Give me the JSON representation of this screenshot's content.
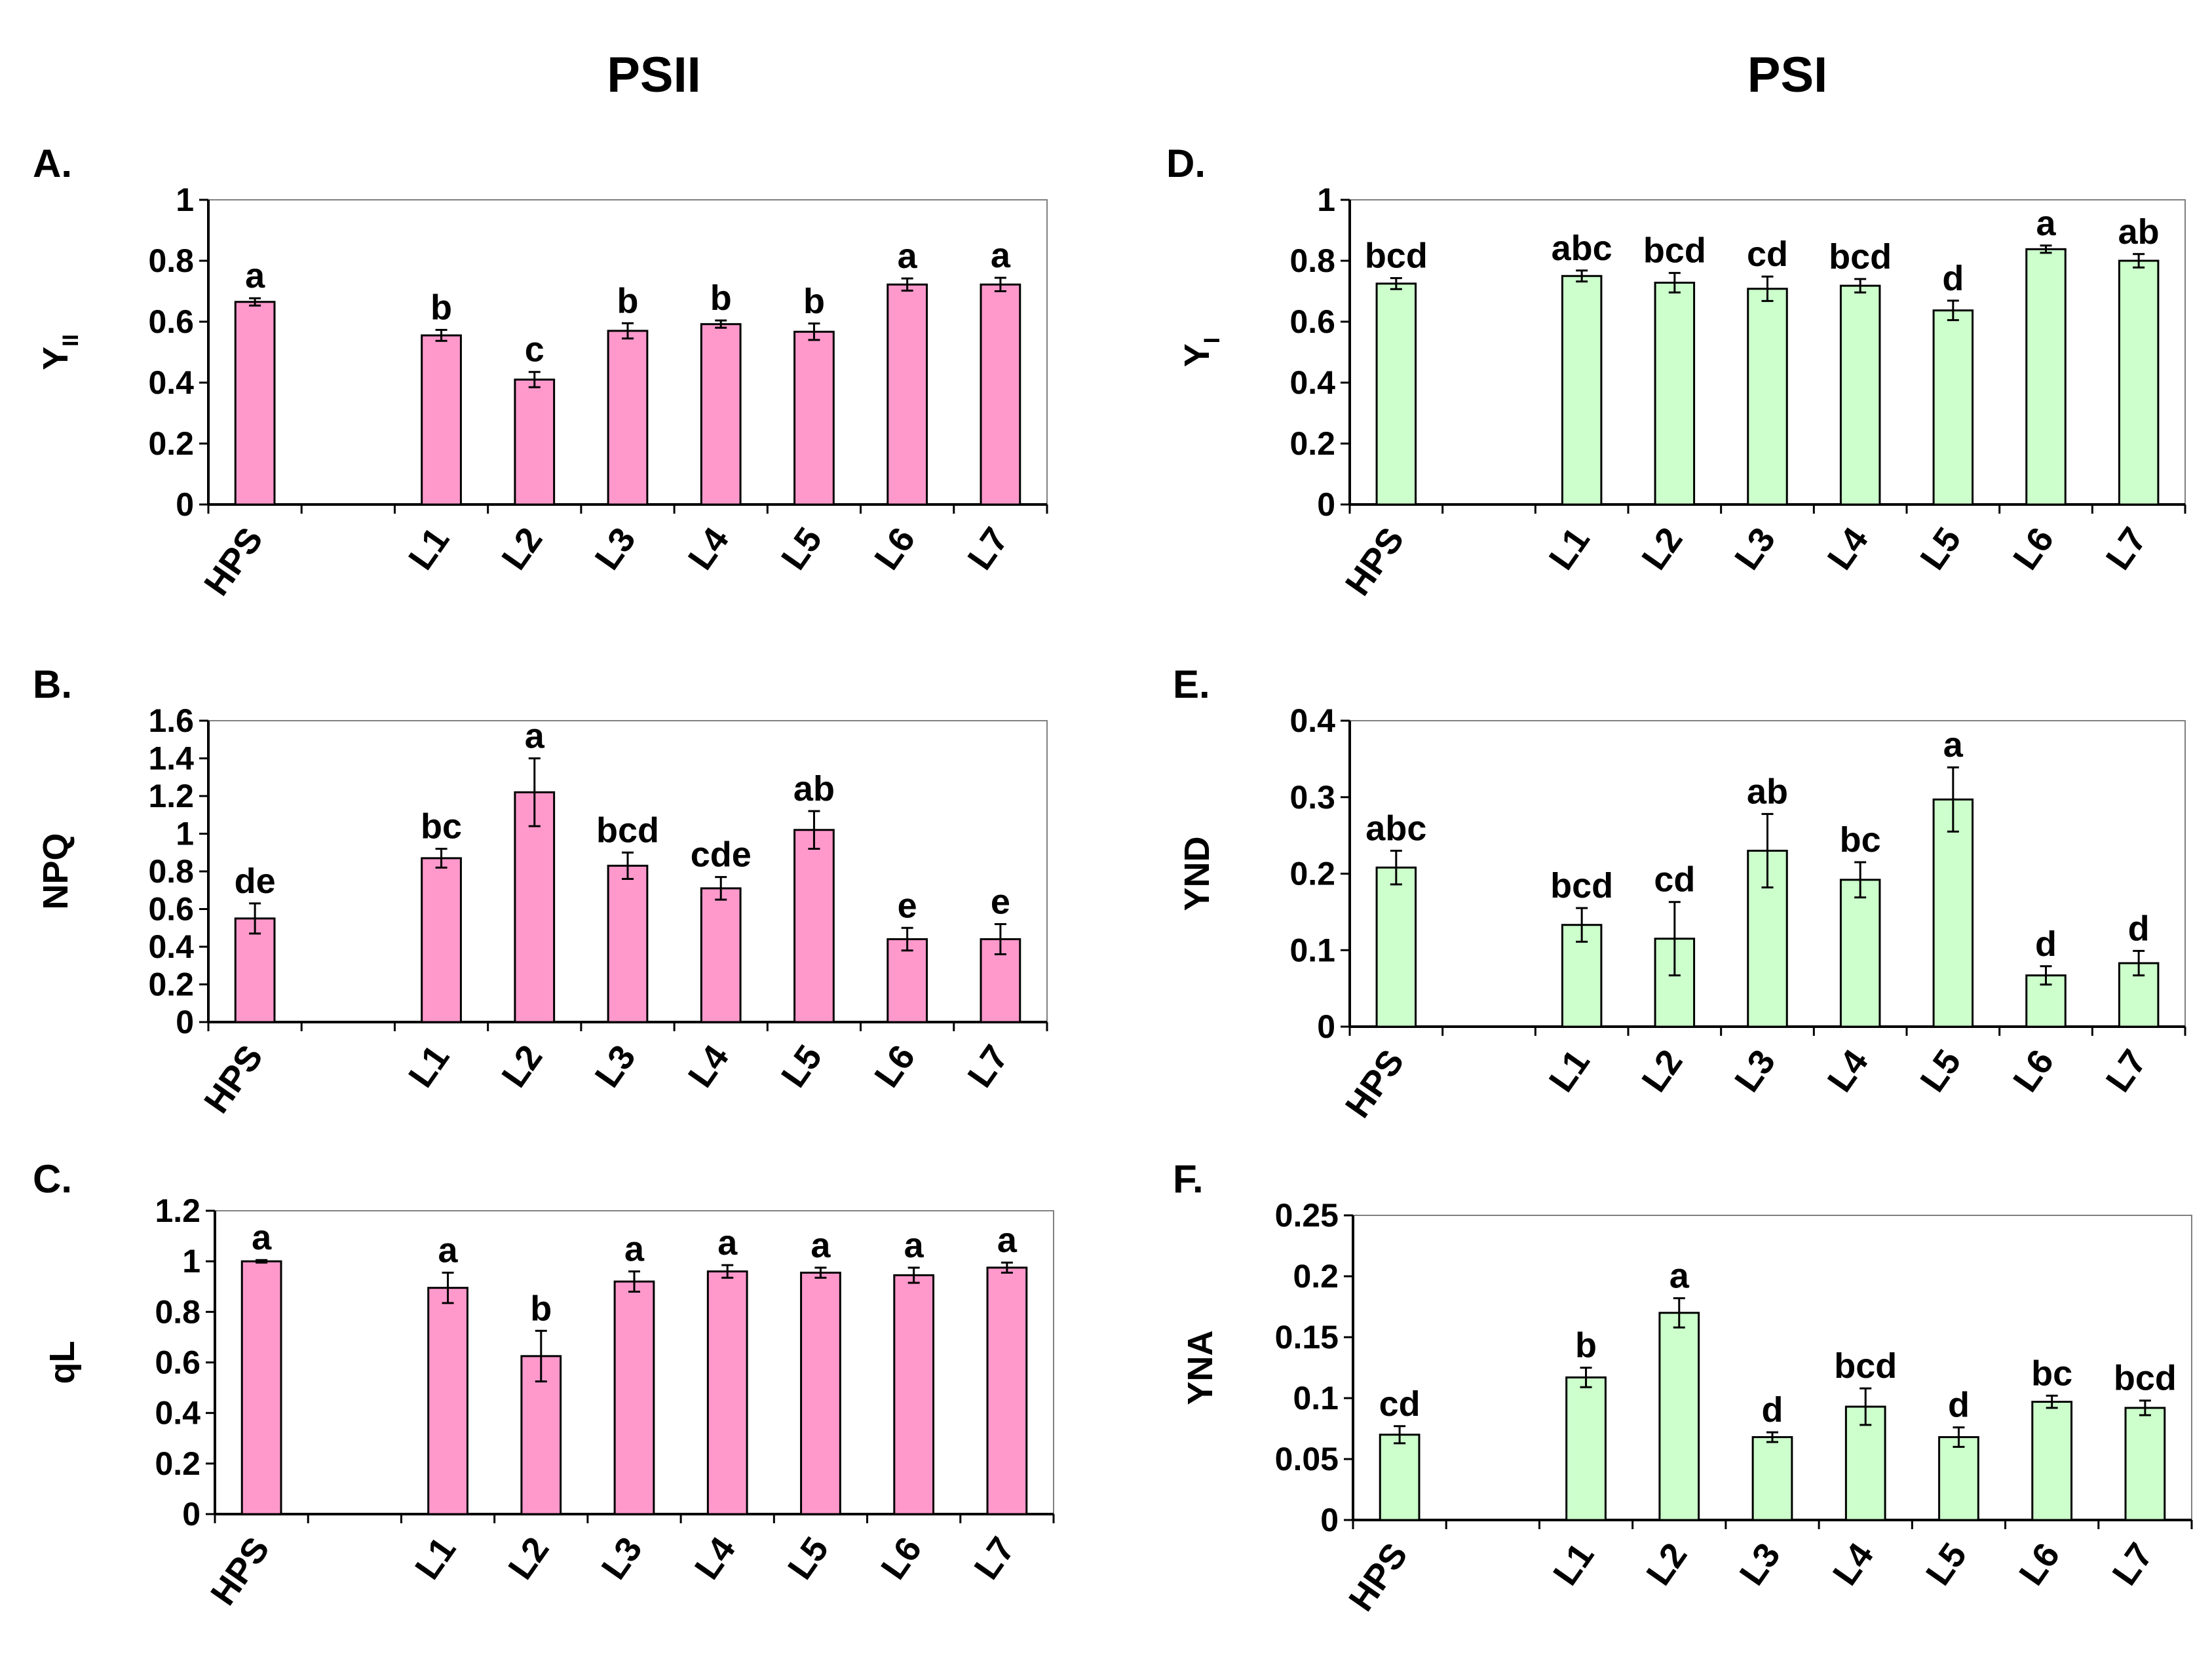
{
  "headers": {
    "left": "PSII",
    "right": "PSI"
  },
  "colors": {
    "psii_fill": "#ff99cc",
    "psi_fill": "#ccffcc",
    "stroke": "#000000",
    "plot_border": "#808080"
  },
  "chart_data": [
    {
      "id": "A",
      "panel_label": "A.",
      "type": "bar",
      "color_key": "psii_fill",
      "ylabel": "Y",
      "ylabel_sub": "II",
      "categories": [
        "HPS",
        "",
        "L1",
        "L2",
        "L3",
        "L4",
        "L5",
        "L6",
        "L7"
      ],
      "values": [
        0.665,
        null,
        0.555,
        0.41,
        0.57,
        0.592,
        0.567,
        0.722,
        0.722
      ],
      "errors": [
        0.012,
        null,
        0.018,
        0.025,
        0.025,
        0.012,
        0.027,
        0.02,
        0.022
      ],
      "letters": [
        "a",
        "",
        "b",
        "c",
        "b",
        "b",
        "b",
        "a",
        "a"
      ],
      "ylim": [
        0,
        1
      ],
      "yticks": [
        0,
        0.2,
        0.4,
        0.6,
        0.8,
        1
      ],
      "ytick_labels": [
        "0",
        "0.2",
        "0.4",
        "0.6",
        "0.8",
        "1"
      ]
    },
    {
      "id": "B",
      "panel_label": "B.",
      "type": "bar",
      "color_key": "psii_fill",
      "ylabel": "NPQ",
      "ylabel_sub": "",
      "categories": [
        "HPS",
        "",
        "L1",
        "L2",
        "L3",
        "L4",
        "L5",
        "L6",
        "L7"
      ],
      "values": [
        0.55,
        null,
        0.87,
        1.22,
        0.83,
        0.71,
        1.02,
        0.44,
        0.44
      ],
      "errors": [
        0.08,
        null,
        0.05,
        0.18,
        0.07,
        0.06,
        0.1,
        0.06,
        0.08
      ],
      "letters": [
        "de",
        "",
        "bc",
        "a",
        "bcd",
        "cde",
        "ab",
        "e",
        "e"
      ],
      "ylim": [
        0,
        1.6
      ],
      "yticks": [
        0,
        0.2,
        0.4,
        0.6,
        0.8,
        1,
        1.2,
        1.4,
        1.6
      ],
      "ytick_labels": [
        "0",
        "0.2",
        "0.4",
        "0.6",
        "0.8",
        "1",
        "1.2",
        "1.4",
        "1.6"
      ]
    },
    {
      "id": "C",
      "panel_label": "C.",
      "type": "bar",
      "color_key": "psii_fill",
      "ylabel": "qL",
      "ylabel_sub": "",
      "categories": [
        "HPS",
        "",
        "L1",
        "L2",
        "L3",
        "L4",
        "L5",
        "L6",
        "L7"
      ],
      "values": [
        1.0,
        null,
        0.895,
        0.625,
        0.92,
        0.96,
        0.955,
        0.945,
        0.975
      ],
      "errors": [
        0.005,
        null,
        0.06,
        0.1,
        0.04,
        0.025,
        0.02,
        0.03,
        0.02
      ],
      "letters": [
        "a",
        "",
        "a",
        "b",
        "a",
        "a",
        "a",
        "a",
        "a"
      ],
      "ylim": [
        0,
        1.2
      ],
      "yticks": [
        0,
        0.2,
        0.4,
        0.6,
        0.8,
        1,
        1.2
      ],
      "ytick_labels": [
        "0",
        "0.2",
        "0.4",
        "0.6",
        "0.8",
        "1",
        "1.2"
      ]
    },
    {
      "id": "D",
      "panel_label": "D.",
      "type": "bar",
      "color_key": "psi_fill",
      "ylabel": "Y",
      "ylabel_sub": "I",
      "categories": [
        "HPS",
        "",
        "L1",
        "L2",
        "L3",
        "L4",
        "L5",
        "L6",
        "L7"
      ],
      "values": [
        0.725,
        null,
        0.75,
        0.728,
        0.708,
        0.718,
        0.637,
        0.838,
        0.8
      ],
      "errors": [
        0.018,
        null,
        0.018,
        0.032,
        0.04,
        0.022,
        0.032,
        0.012,
        0.022
      ],
      "letters": [
        "bcd",
        "",
        "abc",
        "bcd",
        "cd",
        "bcd",
        "d",
        "a",
        "ab"
      ],
      "ylim": [
        0,
        1
      ],
      "yticks": [
        0,
        0.2,
        0.4,
        0.6,
        0.8,
        1
      ],
      "ytick_labels": [
        "0",
        "0.2",
        "0.4",
        "0.6",
        "0.8",
        "1"
      ]
    },
    {
      "id": "E",
      "panel_label": "E.",
      "type": "bar",
      "color_key": "psi_fill",
      "ylabel": "YND",
      "ylabel_sub": "",
      "categories": [
        "HPS",
        "",
        "L1",
        "L2",
        "L3",
        "L4",
        "L5",
        "L6",
        "L7"
      ],
      "values": [
        0.208,
        null,
        0.133,
        0.115,
        0.23,
        0.192,
        0.297,
        0.067,
        0.083
      ],
      "errors": [
        0.022,
        null,
        0.022,
        0.048,
        0.048,
        0.023,
        0.042,
        0.012,
        0.016
      ],
      "letters": [
        "abc",
        "",
        "bcd",
        "cd",
        "ab",
        "bc",
        "a",
        "d",
        "d"
      ],
      "ylim": [
        0,
        0.4
      ],
      "yticks": [
        0,
        0.1,
        0.2,
        0.3,
        0.4
      ],
      "ytick_labels": [
        "0",
        "0.1",
        "0.2",
        "0.3",
        "0.4"
      ]
    },
    {
      "id": "F",
      "panel_label": "F.",
      "type": "bar",
      "color_key": "psi_fill",
      "ylabel": "YNA",
      "ylabel_sub": "",
      "categories": [
        "HPS",
        "",
        "L1",
        "L2",
        "L3",
        "L4",
        "L5",
        "L6",
        "L7"
      ],
      "values": [
        0.07,
        null,
        0.117,
        0.17,
        0.068,
        0.093,
        0.068,
        0.097,
        0.092
      ],
      "errors": [
        0.007,
        null,
        0.008,
        0.012,
        0.004,
        0.015,
        0.008,
        0.005,
        0.006
      ],
      "letters": [
        "cd",
        "",
        "b",
        "a",
        "d",
        "bcd",
        "d",
        "bc",
        "bcd"
      ],
      "ylim": [
        0,
        0.25
      ],
      "yticks": [
        0,
        0.05,
        0.1,
        0.15,
        0.2,
        0.25
      ],
      "ytick_labels": [
        "0",
        "0.05",
        "0.1",
        "0.15",
        "0.2",
        "0.25"
      ]
    }
  ]
}
